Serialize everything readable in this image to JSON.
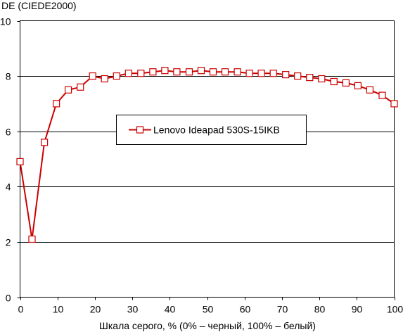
{
  "chart_data": {
    "type": "line",
    "title": "",
    "ylabel": "DE (CIEDE2000)",
    "xlabel": "Шкала серого, % (0% – черный, 100% – белый)",
    "xlim": [
      0,
      100
    ],
    "ylim": [
      0,
      10
    ],
    "xticks": [
      "0",
      "10",
      "20",
      "30",
      "40",
      "50",
      "60",
      "70",
      "80",
      "90",
      "100"
    ],
    "yticks": [
      "0",
      "2",
      "4",
      "6",
      "8",
      "10"
    ],
    "grid": "horizontal",
    "legend_position": "center",
    "series_color": "#cc0000",
    "series": [
      {
        "name": "Lenovo Ideapad 530S-15IKB",
        "x": [
          0,
          3.2,
          6.5,
          9.7,
          12.9,
          16.1,
          19.4,
          22.6,
          25.8,
          29.0,
          32.3,
          35.5,
          38.7,
          41.9,
          45.2,
          48.4,
          51.6,
          54.8,
          58.1,
          61.3,
          64.5,
          67.7,
          71.0,
          74.2,
          77.4,
          80.6,
          83.9,
          87.1,
          90.3,
          93.5,
          96.8,
          100
        ],
        "y": [
          4.9,
          2.1,
          5.6,
          7.0,
          7.5,
          7.6,
          8.0,
          7.9,
          8.0,
          8.1,
          8.1,
          8.15,
          8.2,
          8.15,
          8.15,
          8.2,
          8.15,
          8.15,
          8.15,
          8.1,
          8.1,
          8.1,
          8.05,
          8.0,
          7.95,
          7.9,
          7.8,
          7.75,
          7.65,
          7.5,
          7.3,
          7.0
        ]
      }
    ]
  }
}
